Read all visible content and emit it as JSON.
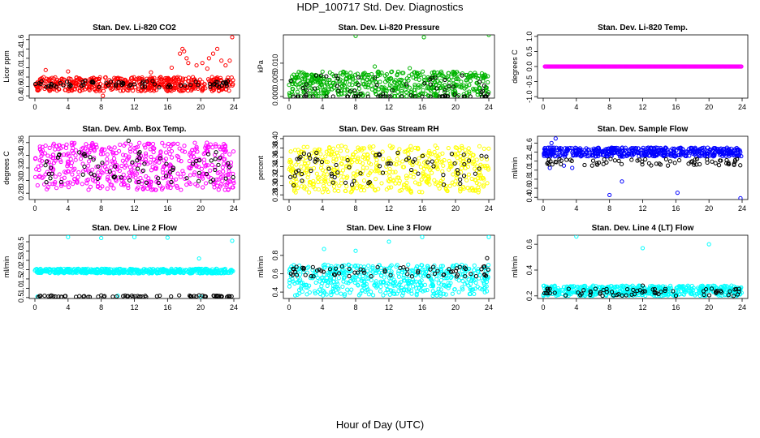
{
  "title": "HDP_100717  Std. Dev. Diagnostics",
  "x_axis_label": "Hour of Day (UTC)",
  "colors": {
    "co2": "#ff0000",
    "pressure": "#00b400",
    "temp": "#ff00ff",
    "box_temp": "#ff00ff",
    "rh": "#ffff00",
    "sample_flow": "#0000ff",
    "line_flow": "#00ffff",
    "reference_points": "#000000"
  },
  "chart_data": [
    {
      "type": "scatter",
      "title": "Stan. Dev. Li-820 CO2",
      "ylabel": "Licor ppm",
      "xlim": [
        0,
        24
      ],
      "ylim": [
        0.35,
        1.7
      ],
      "xticks": [
        "0",
        "4",
        "8",
        "12",
        "16",
        "20",
        "24"
      ],
      "yticks": [
        "0.4",
        "0.6",
        "0.8",
        "1.0",
        "1.2",
        "1.4",
        "1.6"
      ],
      "series": [
        {
          "color": "#ff0000",
          "band": [
            0.5,
            0.8
          ],
          "points": [
            [
              17.5,
              1.3
            ],
            [
              17.8,
              1.4
            ],
            [
              18.0,
              1.35
            ],
            [
              18.3,
              1.2
            ],
            [
              18.5,
              1.1
            ],
            [
              19.5,
              1.05
            ],
            [
              20.2,
              1.1
            ],
            [
              21.0,
              1.2
            ],
            [
              21.5,
              1.3
            ],
            [
              22.0,
              1.4
            ],
            [
              22.5,
              1.15
            ],
            [
              23.0,
              1.05
            ],
            [
              23.5,
              1.15
            ],
            [
              23.8,
              1.65
            ],
            [
              1.3,
              0.95
            ],
            [
              4.0,
              0.92
            ],
            [
              14.0,
              0.9
            ],
            [
              8.2,
              0.4
            ],
            [
              16.5,
              1.0
            ],
            [
              20.8,
              0.98
            ]
          ]
        },
        {
          "color": "#000000",
          "band": [
            0.58,
            0.72
          ],
          "points": []
        }
      ]
    },
    {
      "type": "scatter",
      "title": "Stan. Dev. Li-820 Pressure",
      "ylabel": "kPa",
      "xlim": [
        0,
        24
      ],
      "ylim": [
        -0.0005,
        0.0185
      ],
      "xticks": [
        "0",
        "4",
        "8",
        "12",
        "16",
        "20",
        "24"
      ],
      "yticks": [
        "0.000",
        "0.005",
        "0.010"
      ],
      "series": [
        {
          "color": "#00b400",
          "band": [
            0.0,
            0.0075
          ],
          "points": [
            [
              8.0,
              0.0182
            ],
            [
              16.2,
              0.0178
            ],
            [
              24.0,
              0.0185
            ],
            [
              10.3,
              0.009
            ],
            [
              14.5,
              0.0085
            ]
          ]
        },
        {
          "color": "#000000",
          "band": [
            0.0,
            0.0065
          ],
          "points": [
            [
              0.5,
              0.0
            ],
            [
              2.0,
              0.0
            ],
            [
              4.5,
              0.0
            ],
            [
              7.0,
              0.0
            ],
            [
              9.5,
              0.0
            ],
            [
              11.5,
              0.0
            ],
            [
              13.5,
              0.0
            ],
            [
              16.0,
              0.0
            ],
            [
              18.5,
              0.0
            ],
            [
              21.0,
              0.0
            ],
            [
              23.5,
              0.0
            ]
          ]
        }
      ]
    },
    {
      "type": "scatter",
      "title": "Stan. Dev. Li-820 Temp.",
      "ylabel": "degrees C",
      "xlim": [
        0,
        24
      ],
      "ylim": [
        -1.05,
        1.05
      ],
      "xticks": [
        "0",
        "4",
        "8",
        "12",
        "16",
        "20",
        "24"
      ],
      "yticks": [
        "-1.0",
        "-0.5",
        "0.0",
        "0.5",
        "1.0"
      ],
      "series": [
        {
          "color": "#ff00ff",
          "band": [
            0.0,
            0.0
          ],
          "points": []
        }
      ]
    },
    {
      "type": "scatter",
      "title": "Stan. Dev. Amb. Box Temp.",
      "ylabel": "degrees C",
      "xlim": [
        0,
        24
      ],
      "ylim": [
        0.27,
        0.37
      ],
      "xticks": [
        "0",
        "4",
        "8",
        "12",
        "16",
        "20",
        "24"
      ],
      "yticks": [
        "0.28",
        "0.30",
        "0.32",
        "0.34",
        "0.36"
      ],
      "series": [
        {
          "color": "#ff00ff",
          "band": [
            0.285,
            0.36
          ],
          "points": []
        },
        {
          "color": "#000000",
          "band": [
            0.295,
            0.345
          ],
          "points": [
            [
              11.3,
              0.363
            ]
          ]
        }
      ]
    },
    {
      "type": "scatter",
      "title": "Stan. Dev. Gas Stream RH",
      "ylabel": "percent",
      "xlim": [
        0,
        24
      ],
      "ylim": [
        0.27,
        0.405
      ],
      "xticks": [
        "0",
        "4",
        "8",
        "12",
        "16",
        "20",
        "24"
      ],
      "yticks": [
        "0.28",
        "0.30",
        "0.32",
        "0.34",
        "0.36",
        "0.38",
        "0.40"
      ],
      "series": [
        {
          "color": "#ffff00",
          "band": [
            0.285,
            0.385
          ],
          "points": []
        },
        {
          "color": "#000000",
          "band": [
            0.3,
            0.37
          ],
          "points": []
        }
      ]
    },
    {
      "type": "scatter",
      "title": "Stan. Dev. Sample Flow",
      "ylabel": "ml/min",
      "xlim": [
        0,
        24
      ],
      "ylim": [
        0.35,
        1.75
      ],
      "xticks": [
        "0",
        "4",
        "8",
        "12",
        "16",
        "20",
        "24"
      ],
      "yticks": [
        "0.4",
        "0.6",
        "0.8",
        "1.0",
        "1.2",
        "1.4",
        "1.6"
      ],
      "series": [
        {
          "color": "#0000ff",
          "band": [
            1.3,
            1.5
          ],
          "points": [
            [
              1.0,
              1.6
            ],
            [
              1.5,
              1.7
            ],
            [
              3.5,
              1.05
            ],
            [
              8.0,
              0.45
            ],
            [
              9.5,
              0.75
            ],
            [
              16.2,
              0.5
            ],
            [
              23.8,
              0.38
            ],
            [
              0.8,
              1.05
            ],
            [
              2.5,
              1.1
            ]
          ]
        },
        {
          "color": "#000000",
          "band": [
            1.1,
            1.25
          ],
          "points": []
        }
      ]
    },
    {
      "type": "scatter",
      "title": "Stan. Dev. Line 2 Flow",
      "ylabel": "ml/min",
      "xlim": [
        0,
        24
      ],
      "ylim": [
        0.45,
        3.85
      ],
      "xticks": [
        "0",
        "4",
        "8",
        "12",
        "16",
        "20",
        "24"
      ],
      "yticks": [
        "0.5",
        "1.0",
        "1.5",
        "2.0",
        "2.5",
        "3.0",
        "3.5"
      ],
      "series": [
        {
          "color": "#00ffff",
          "band": [
            1.8,
            2.05
          ],
          "points": [
            [
              4.0,
              3.75
            ],
            [
              8.0,
              3.7
            ],
            [
              12.0,
              3.75
            ],
            [
              16.0,
              3.72
            ],
            [
              19.8,
              2.6
            ],
            [
              23.8,
              3.55
            ],
            [
              0.3,
              0.55
            ],
            [
              10.0,
              0.6
            ],
            [
              20.0,
              0.55
            ]
          ]
        },
        {
          "color": "#000000",
          "band": [
            0.53,
            0.62
          ],
          "points": []
        }
      ]
    },
    {
      "type": "scatter",
      "title": "Stan. Dev. Line 3 Flow",
      "ylabel": "ml/min",
      "xlim": [
        0,
        24
      ],
      "ylim": [
        0.33,
        1.02
      ],
      "xticks": [
        "0",
        "4",
        "8",
        "12",
        "16",
        "20",
        "24"
      ],
      "yticks": [
        "0.4",
        "0.6",
        "0.8"
      ],
      "series": [
        {
          "color": "#00ffff",
          "band": [
            0.36,
            0.7
          ],
          "points": [
            [
              4.2,
              0.87
            ],
            [
              8.0,
              0.85
            ],
            [
              12.0,
              0.95
            ],
            [
              16.0,
              1.0
            ],
            [
              24.0,
              1.0
            ]
          ]
        },
        {
          "color": "#000000",
          "band": [
            0.57,
            0.68
          ],
          "points": [
            [
              23.8,
              0.77
            ]
          ]
        }
      ]
    },
    {
      "type": "scatter",
      "title": "Stan. Dev. Line 4 (LT) Flow",
      "ylabel": "ml/min",
      "xlim": [
        0,
        24
      ],
      "ylim": [
        0.18,
        0.67
      ],
      "xticks": [
        "0",
        "4",
        "8",
        "12",
        "16",
        "20",
        "24"
      ],
      "yticks": [
        "0.2",
        "0.4",
        "0.6"
      ],
      "series": [
        {
          "color": "#00ffff",
          "band": [
            0.2,
            0.28
          ],
          "points": [
            [
              4.0,
              0.66
            ],
            [
              12.0,
              0.57
            ],
            [
              20.0,
              0.6
            ]
          ]
        },
        {
          "color": "#000000",
          "band": [
            0.2,
            0.26
          ],
          "points": [
            [
              12.0,
              0.28
            ]
          ]
        }
      ]
    }
  ]
}
